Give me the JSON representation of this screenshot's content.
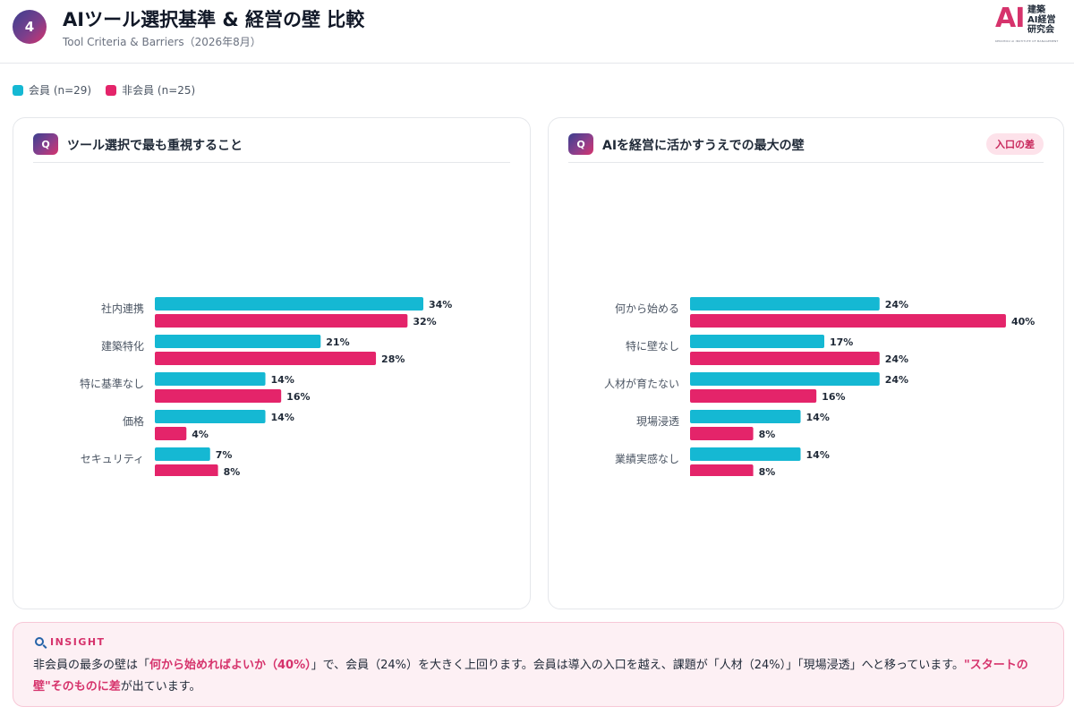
{
  "header": {
    "page_number": "4",
    "title": "AIツール選択基準 & 経営の壁 比較",
    "subtitle": "Tool Criteria & Barriers（2026年8月）"
  },
  "logo": {
    "mark_ai": "AI",
    "line1": "建築",
    "line2": "AI経営",
    "line3": "研究会",
    "tagline": "KENCHIKU AI INSTITUTE OF MANAGEMENT"
  },
  "legend": {
    "members": "会員 (n=29)",
    "non_members": "非会員 (n=25)"
  },
  "colors": {
    "members": "#15b8d3",
    "non_members": "#e4246a"
  },
  "chart_data": [
    {
      "type": "bar",
      "orientation": "horizontal",
      "title": "ツール選択で最も重視すること",
      "badge": "Q",
      "categories": [
        "社内連携",
        "建築特化",
        "特に基準なし",
        "価格",
        "セキュリティ"
      ],
      "series": [
        {
          "name": "会員 (n=29)",
          "values": [
            34,
            21,
            14,
            14,
            7
          ]
        },
        {
          "name": "非会員 (n=25)",
          "values": [
            32,
            28,
            16,
            4,
            8
          ]
        }
      ],
      "unit": "%",
      "xlim": [
        0,
        50
      ]
    },
    {
      "type": "bar",
      "orientation": "horizontal",
      "title": "AIを経営に活かすうえでの最大の壁",
      "badge": "Q",
      "tag": "入口の差",
      "categories": [
        "何から始める",
        "特に壁なし",
        "人材が育たない",
        "現場浸透",
        "業績実感なし"
      ],
      "series": [
        {
          "name": "会員 (n=29)",
          "values": [
            24,
            17,
            24,
            14,
            14
          ]
        },
        {
          "name": "非会員 (n=25)",
          "values": [
            40,
            24,
            16,
            8,
            8
          ]
        }
      ],
      "unit": "%",
      "xlim": [
        0,
        50
      ]
    }
  ],
  "insight": {
    "label": "INSIGHT",
    "parts": [
      "非会員の最多の壁は「",
      "何から始めればよいか（40%）",
      "」で、会員（24%）を大きく上回ります。会員は導入の入口を越え、課題が「人材（24%）」「現場浸透」へと移っています。",
      "\"スタートの壁\"そのものに差",
      "が出ています。"
    ]
  }
}
